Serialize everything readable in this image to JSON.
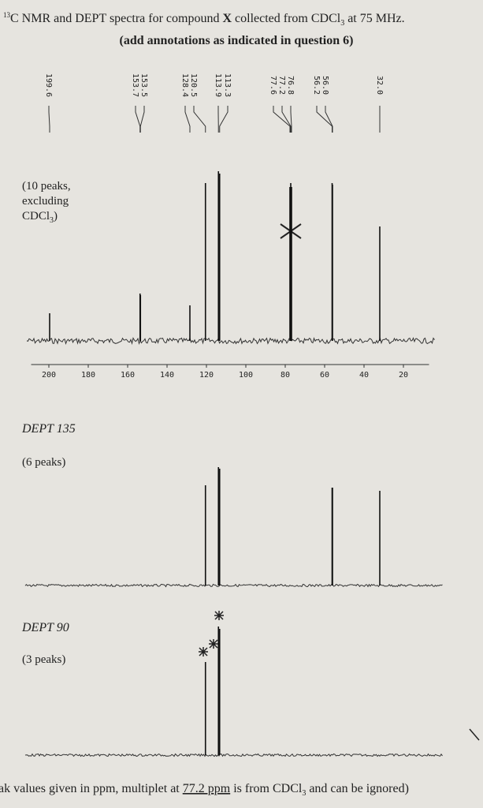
{
  "header": {
    "title": {
      "sup": "13",
      "text": "C NMR and DEPT spectra for compound ",
      "bold": "X",
      "text2": " collected from CDCl",
      "sub": "3",
      "text3": " at 75 MHz."
    },
    "subtitle": "(add annotations as indicated in question 6)"
  },
  "chart_data": [
    {
      "type": "spectrum",
      "note": {
        "line1": "(10 peaks,",
        "line2": "excluding",
        "line3": "CDCl",
        "sub": "3",
        "end": ")"
      },
      "xlim": [
        209,
        7
      ],
      "xticks": [
        200,
        180,
        160,
        140,
        120,
        100,
        80,
        60,
        40,
        20
      ],
      "ylim": [
        0,
        230
      ],
      "color": "#111111",
      "peaks": [
        {
          "ppm": 199.6,
          "label": "199.6",
          "height": 35
        },
        {
          "ppm": 153.7,
          "label": "153.7",
          "height": 60
        },
        {
          "ppm": 153.5,
          "label": "153.5",
          "height": 58
        },
        {
          "ppm": 128.4,
          "label": "128.4",
          "height": 45
        },
        {
          "ppm": 120.5,
          "label": "120.5",
          "height": 200
        },
        {
          "ppm": 113.9,
          "label": "113.9",
          "height": 215
        },
        {
          "ppm": 113.3,
          "label": "113.3",
          "height": 212
        },
        {
          "ppm": 77.6,
          "label": "77.6",
          "height": 195
        },
        {
          "ppm": 77.2,
          "label": "77.2",
          "height": 200
        },
        {
          "ppm": 76.8,
          "label": "76.8",
          "height": 195
        },
        {
          "ppm": 56.2,
          "label": "56.2",
          "height": 200
        },
        {
          "ppm": 56.0,
          "label": "56.0",
          "height": 198
        },
        {
          "ppm": 32.0,
          "label": "32.0",
          "height": 145
        }
      ]
    },
    {
      "type": "spectrum",
      "title": "DEPT 135",
      "note": {
        "line1": "(6 peaks)"
      },
      "xlim": [
        209,
        7
      ],
      "ylim": [
        0,
        230
      ],
      "color": "#111111",
      "peaks": [
        {
          "ppm": 120.5,
          "height": 127
        },
        {
          "ppm": 113.9,
          "height": 150
        },
        {
          "ppm": 113.3,
          "height": 148
        },
        {
          "ppm": 56.2,
          "height": 124
        },
        {
          "ppm": 56.0,
          "height": 124
        },
        {
          "ppm": 32.0,
          "height": 120
        }
      ]
    },
    {
      "type": "spectrum",
      "title": "DEPT 90",
      "note": {
        "line1": "(3 peaks)"
      },
      "xlim": [
        209,
        7
      ],
      "ylim": [
        0,
        230
      ],
      "color": "#111111",
      "peaks": [
        {
          "ppm": 120.5,
          "height": 118
        },
        {
          "ppm": 113.9,
          "height": 163
        },
        {
          "ppm": 113.3,
          "height": 160
        }
      ]
    }
  ],
  "footer": {
    "text": "ak values given in ppm, multiplet at ",
    "underlined": "77.2 ppm",
    "text2": " is from CDCl",
    "sub": "3",
    "text3": " and can be ignored)"
  }
}
